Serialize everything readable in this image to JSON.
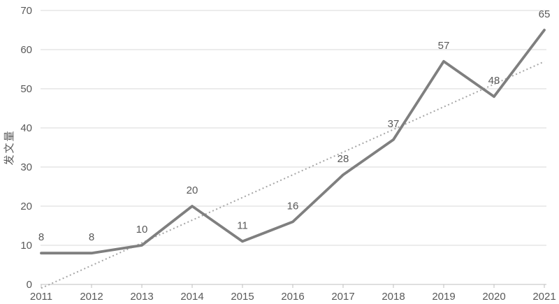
{
  "chart_data": {
    "type": "line",
    "title": "",
    "xlabel": "",
    "ylabel": "发文量",
    "categories": [
      "2011",
      "2012",
      "2013",
      "2014",
      "2015",
      "2016",
      "2017",
      "2018",
      "2019",
      "2020",
      "2021"
    ],
    "series": [
      {
        "name": "发文量",
        "values": [
          8,
          8,
          10,
          20,
          11,
          16,
          28,
          37,
          57,
          48,
          65
        ]
      }
    ],
    "data_labels": [
      8,
      8,
      10,
      20,
      11,
      16,
      28,
      37,
      57,
      48,
      65
    ],
    "yticks": [
      0,
      10,
      20,
      30,
      40,
      50,
      60,
      70
    ],
    "ylim": [
      0,
      70
    ],
    "grid": true,
    "legend": "none",
    "trendline": {
      "type": "linear",
      "style": "dotted"
    }
  },
  "colors": {
    "background": "#ffffff",
    "series_line": "#7f7f7f",
    "trendline": "#a6a6a6",
    "gridline": "#d9d9d9",
    "axis_line": "#bfbfbf",
    "tick_text": "#595959",
    "label_text": "#595959",
    "axis_title_text": "#595959"
  }
}
